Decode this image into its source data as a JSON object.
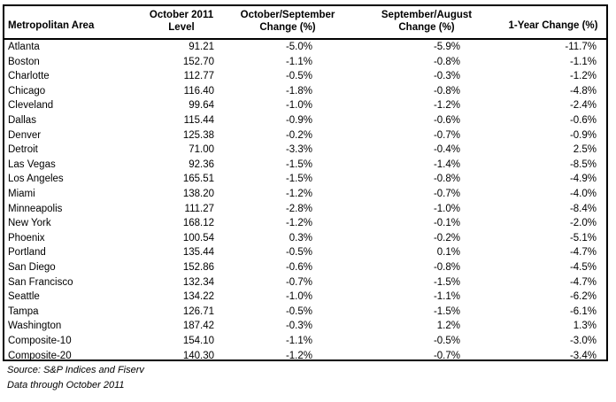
{
  "table": {
    "headers": {
      "area": "Metropolitan Area",
      "level_1": "October 2011",
      "level_2": "Level",
      "m1_1": "October/September",
      "m1_2": "Change (%)",
      "m2_1": "September/August",
      "m2_2": "Change (%)",
      "y1": "1-Year Change (%)"
    },
    "rows": [
      {
        "area": "Atlanta",
        "level": "91.21",
        "m1": "-5.0%",
        "m2": "-5.9%",
        "y1": "-11.7%"
      },
      {
        "area": "Boston",
        "level": "152.70",
        "m1": "-1.1%",
        "m2": "-0.8%",
        "y1": "-1.1%"
      },
      {
        "area": "Charlotte",
        "level": "112.77",
        "m1": "-0.5%",
        "m2": "-0.3%",
        "y1": "-1.2%"
      },
      {
        "area": "Chicago",
        "level": "116.40",
        "m1": "-1.8%",
        "m2": "-0.8%",
        "y1": "-4.8%"
      },
      {
        "area": "Cleveland",
        "level": "99.64",
        "m1": "-1.0%",
        "m2": "-1.2%",
        "y1": "-2.4%"
      },
      {
        "area": "Dallas",
        "level": "115.44",
        "m1": "-0.9%",
        "m2": "-0.6%",
        "y1": "-0.6%"
      },
      {
        "area": "Denver",
        "level": "125.38",
        "m1": "-0.2%",
        "m2": "-0.7%",
        "y1": "-0.9%"
      },
      {
        "area": "Detroit",
        "level": "71.00",
        "m1": "-3.3%",
        "m2": "-0.4%",
        "y1": "2.5%"
      },
      {
        "area": "Las Vegas",
        "level": "92.36",
        "m1": "-1.5%",
        "m2": "-1.4%",
        "y1": "-8.5%"
      },
      {
        "area": "Los Angeles",
        "level": "165.51",
        "m1": "-1.5%",
        "m2": "-0.8%",
        "y1": "-4.9%"
      },
      {
        "area": "Miami",
        "level": "138.20",
        "m1": "-1.2%",
        "m2": "-0.7%",
        "y1": "-4.0%"
      },
      {
        "area": "Minneapolis",
        "level": "111.27",
        "m1": "-2.8%",
        "m2": "-1.0%",
        "y1": "-8.4%"
      },
      {
        "area": "New York",
        "level": "168.12",
        "m1": "-1.2%",
        "m2": "-0.1%",
        "y1": "-2.0%"
      },
      {
        "area": "Phoenix",
        "level": "100.54",
        "m1": "0.3%",
        "m2": "-0.2%",
        "y1": "-5.1%"
      },
      {
        "area": "Portland",
        "level": "135.44",
        "m1": "-0.5%",
        "m2": "0.1%",
        "y1": "-4.7%"
      },
      {
        "area": "San Diego",
        "level": "152.86",
        "m1": "-0.6%",
        "m2": "-0.8%",
        "y1": "-4.5%"
      },
      {
        "area": "San Francisco",
        "level": "132.34",
        "m1": "-0.7%",
        "m2": "-1.5%",
        "y1": "-4.7%"
      },
      {
        "area": "Seattle",
        "level": "134.22",
        "m1": "-1.0%",
        "m2": "-1.1%",
        "y1": "-6.2%"
      },
      {
        "area": "Tampa",
        "level": "126.71",
        "m1": "-0.5%",
        "m2": "-1.5%",
        "y1": "-6.1%"
      },
      {
        "area": "Washington",
        "level": "187.42",
        "m1": "-0.3%",
        "m2": "1.2%",
        "y1": "1.3%"
      },
      {
        "area": "Composite-10",
        "level": "154.10",
        "m1": "-1.1%",
        "m2": "-0.5%",
        "y1": "-3.0%"
      },
      {
        "area": "Composite-20",
        "level": "140.30",
        "m1": "-1.2%",
        "m2": "-0.7%",
        "y1": "-3.4%"
      }
    ]
  },
  "footer": {
    "source": "Source: S&P Indices and Fiserv",
    "data_through": "Data through October 2011"
  }
}
